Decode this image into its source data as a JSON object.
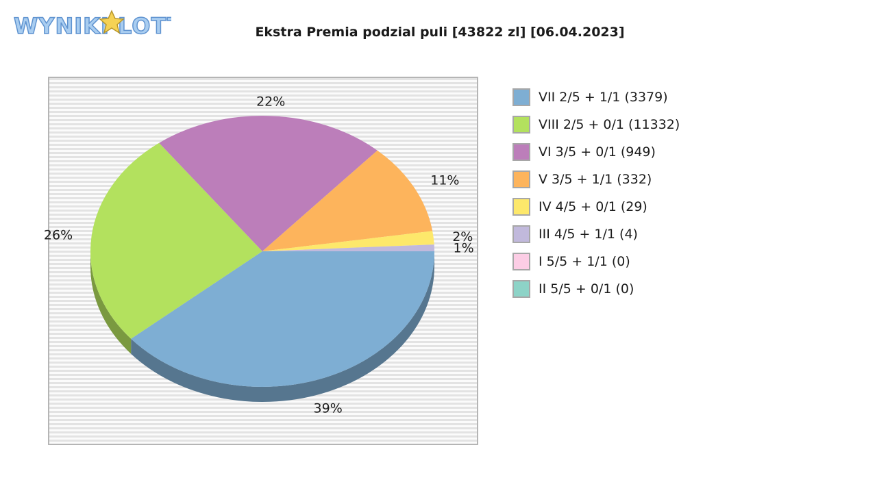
{
  "header": {
    "logo_text": "WYNIKI LOTTO",
    "title": "Ekstra Premia podzial puli [43822 zl] [06.04.2023]"
  },
  "chart_data": {
    "type": "pie",
    "title": "Ekstra Premia podzial puli [43822 zl] [06.04.2023]",
    "slices": [
      {
        "label": "VII 2/5 + 1/1 (3379)",
        "value": 39,
        "pct_label": "39%",
        "color": "#7eaed3"
      },
      {
        "label": "VIII 2/5 + 0/1 (11332)",
        "value": 26,
        "pct_label": "26%",
        "color": "#b3e15e"
      },
      {
        "label": "VI 3/5 + 0/1 (949)",
        "value": 22,
        "pct_label": "22%",
        "color": "#bc7eba"
      },
      {
        "label": "V 3/5 + 1/1 (332)",
        "value": 11,
        "pct_label": "11%",
        "color": "#fdb45c"
      },
      {
        "label": "IV 4/5 + 0/1 (29)",
        "value": 1.6,
        "pct_label": "2%",
        "color": "#fde86b"
      },
      {
        "label": "III 4/5 + 1/1 (4)",
        "value": 0.8,
        "pct_label": "1%",
        "color": "#c1b9dc"
      },
      {
        "label": "I 5/5 + 1/1 (0)",
        "value": 0,
        "pct_label": "",
        "color": "#fccde5"
      },
      {
        "label": "II 5/5 + 0/1 (0)",
        "value": 0,
        "pct_label": "",
        "color": "#8dd3c7"
      }
    ],
    "legend_position": "right",
    "grid": false
  }
}
